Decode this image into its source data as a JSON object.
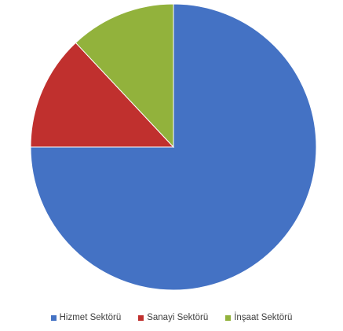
{
  "chart_data": {
    "type": "pie",
    "title": "",
    "legend_position": "bottom",
    "categories": [
      "Hizmet Sektörü",
      "Sanayi Sektörü",
      "İnşaat Sektörü"
    ],
    "values": [
      75,
      13,
      12
    ],
    "colors": [
      "#4472C4",
      "#C0302E",
      "#92B23C"
    ]
  }
}
